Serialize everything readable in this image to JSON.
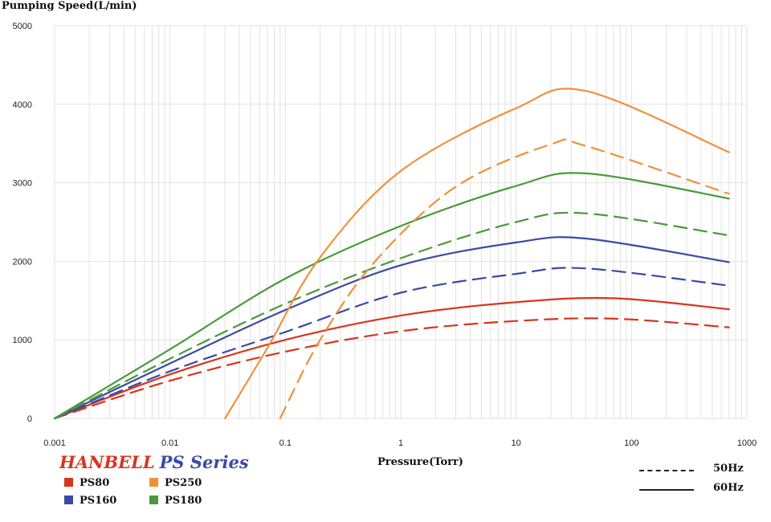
{
  "chart_data": {
    "type": "line",
    "ylabel": "Pumping Speed(L/min)",
    "xlabel": "Pressure(Torr)",
    "x_scale": "log",
    "xlim": [
      0.001,
      1000
    ],
    "ylim": [
      0,
      5000
    ],
    "x_ticks": [
      "0.001",
      "0.01",
      "0.1",
      "1",
      "10",
      "100",
      "1000"
    ],
    "y_ticks": [
      "0",
      "1000",
      "2000",
      "3000",
      "4000",
      "5000"
    ],
    "grid": true,
    "brand": {
      "part1": "HANBELL",
      "part2": "PS Series"
    },
    "line_styles": [
      {
        "label": "50Hz",
        "dash": true
      },
      {
        "label": "60Hz",
        "dash": false
      }
    ],
    "models": [
      {
        "name": "PS80",
        "color": "#d8351f"
      },
      {
        "name": "PS160",
        "color": "#3a4aa6"
      },
      {
        "name": "PS250",
        "color": "#f0913a"
      },
      {
        "name": "PS180",
        "color": "#4a9a3a"
      }
    ],
    "series": [
      {
        "model": "PS80",
        "freq": "60Hz",
        "color": "#d8351f",
        "dash": false,
        "points": [
          [
            0.001,
            0
          ],
          [
            0.01,
            560
          ],
          [
            0.1,
            1000
          ],
          [
            1,
            1310
          ],
          [
            10,
            1480
          ],
          [
            70,
            1530
          ],
          [
            700,
            1390
          ]
        ]
      },
      {
        "model": "PS80",
        "freq": "50Hz",
        "color": "#d8351f",
        "dash": true,
        "points": [
          [
            0.001,
            0
          ],
          [
            0.01,
            480
          ],
          [
            0.1,
            850
          ],
          [
            1,
            1110
          ],
          [
            10,
            1240
          ],
          [
            70,
            1270
          ],
          [
            700,
            1160
          ]
        ]
      },
      {
        "model": "PS160",
        "freq": "60Hz",
        "color": "#3a4aa6",
        "dash": false,
        "points": [
          [
            0.001,
            0
          ],
          [
            0.01,
            700
          ],
          [
            0.1,
            1380
          ],
          [
            1,
            1950
          ],
          [
            10,
            2240
          ],
          [
            40,
            2290
          ],
          [
            700,
            1990
          ]
        ]
      },
      {
        "model": "PS160",
        "freq": "50Hz",
        "color": "#3a4aa6",
        "dash": true,
        "points": [
          [
            0.001,
            0
          ],
          [
            0.01,
            600
          ],
          [
            0.1,
            1100
          ],
          [
            1,
            1600
          ],
          [
            10,
            1840
          ],
          [
            40,
            1910
          ],
          [
            700,
            1690
          ]
        ]
      },
      {
        "model": "PS180",
        "freq": "60Hz",
        "color": "#4a9a3a",
        "dash": false,
        "points": [
          [
            0.001,
            0
          ],
          [
            0.01,
            880
          ],
          [
            0.1,
            1780
          ],
          [
            1,
            2450
          ],
          [
            10,
            2960
          ],
          [
            40,
            3120
          ],
          [
            700,
            2800
          ]
        ]
      },
      {
        "model": "PS180",
        "freq": "50Hz",
        "color": "#4a9a3a",
        "dash": true,
        "points": [
          [
            0.001,
            0
          ],
          [
            0.01,
            760
          ],
          [
            0.1,
            1460
          ],
          [
            1,
            2040
          ],
          [
            10,
            2500
          ],
          [
            40,
            2610
          ],
          [
            700,
            2330
          ]
        ]
      },
      {
        "model": "PS250",
        "freq": "60Hz",
        "color": "#f0913a",
        "dash": false,
        "points": [
          [
            0.03,
            0
          ],
          [
            0.07,
            900
          ],
          [
            0.2,
            2050
          ],
          [
            1,
            3150
          ],
          [
            10,
            3950
          ],
          [
            40,
            4170
          ],
          [
            700,
            3390
          ]
        ]
      },
      {
        "model": "PS250",
        "freq": "50Hz",
        "color": "#f0913a",
        "dash": true,
        "points": [
          [
            0.09,
            0
          ],
          [
            0.2,
            1000
          ],
          [
            0.6,
            2000
          ],
          [
            3,
            2950
          ],
          [
            20,
            3490
          ],
          [
            40,
            3470
          ],
          [
            700,
            2860
          ]
        ]
      }
    ]
  }
}
